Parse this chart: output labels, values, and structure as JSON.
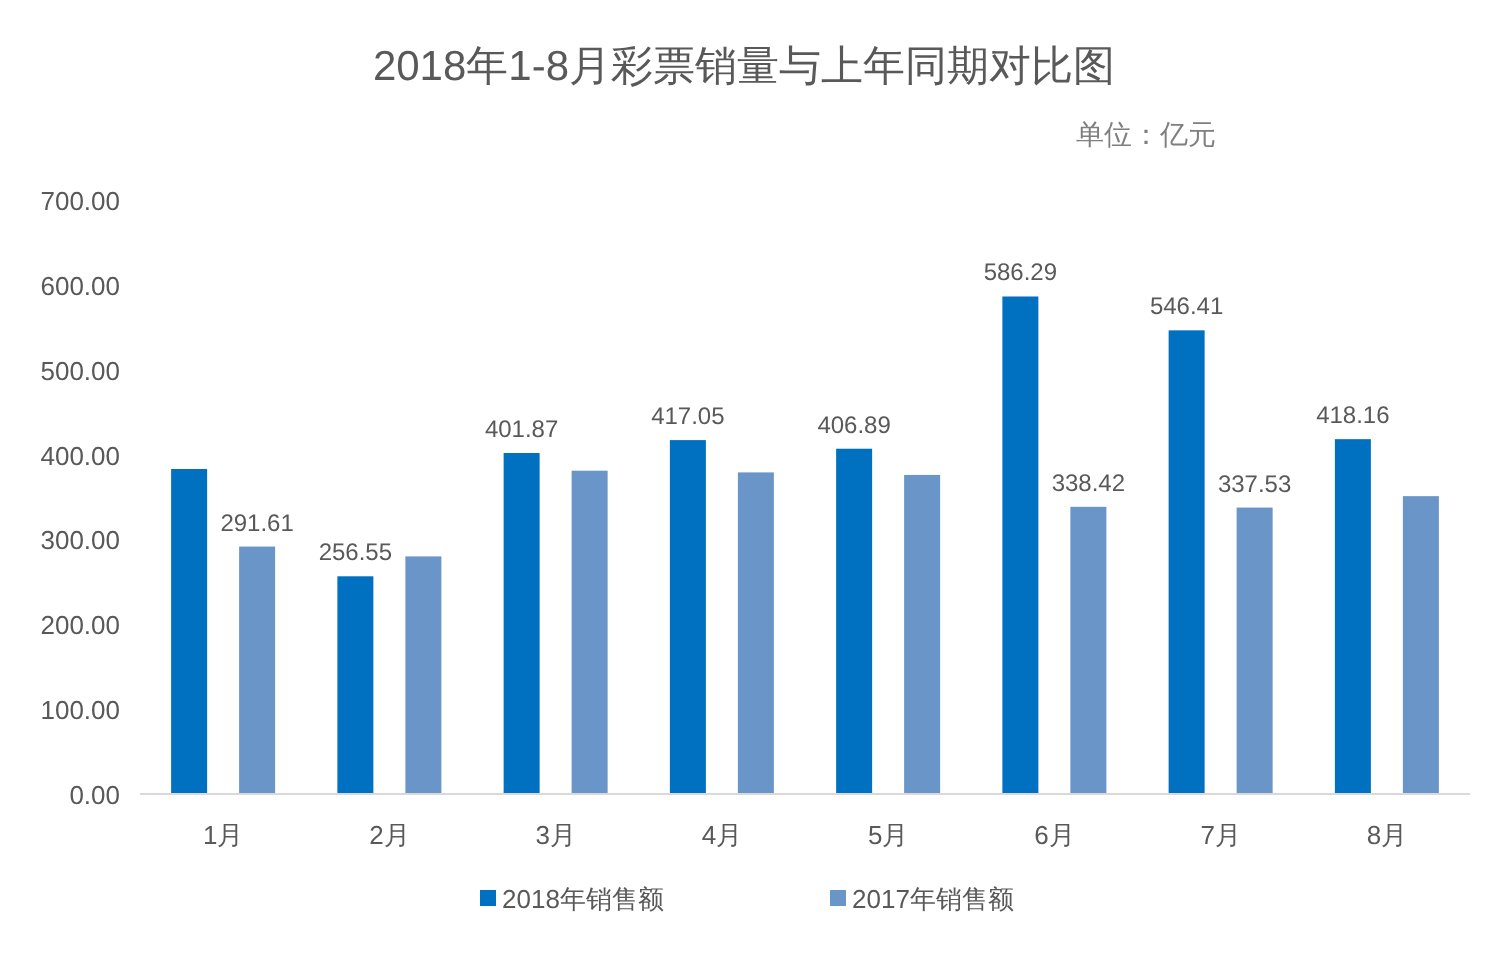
{
  "chart_data": {
    "type": "bar",
    "title": "2018年1-8月彩票销量与上年同期对比图",
    "annotations": [
      "单位：亿元"
    ],
    "categories": [
      "1月",
      "2月",
      "3月",
      "4月",
      "5月",
      "6月",
      "7月",
      "8月"
    ],
    "series": [
      {
        "name": "2018年销售额",
        "color": "#0070c0",
        "values": [
          383,
          256.55,
          401.87,
          417.05,
          406.89,
          586.29,
          546.41,
          418.16
        ],
        "value_labels": [
          null,
          "256.55",
          "401.87",
          "417.05",
          "406.89",
          "586.29",
          "546.41",
          "418.16"
        ]
      },
      {
        "name": "2017年销售额",
        "color": "#6a95c8",
        "values": [
          291.61,
          280,
          381,
          379,
          376,
          338.42,
          337.53,
          351
        ],
        "value_labels": [
          "291.61",
          null,
          null,
          null,
          null,
          "338.42",
          "337.53",
          null
        ]
      }
    ],
    "ylim": [
      0,
      700
    ],
    "yticks": [
      {
        "value": 0,
        "label": "0.00"
      },
      {
        "value": 100,
        "label": "100.00"
      },
      {
        "value": 200,
        "label": "200.00"
      },
      {
        "value": 300,
        "label": "300.00"
      },
      {
        "value": 400,
        "label": "400.00"
      },
      {
        "value": 500,
        "label": "500.00"
      },
      {
        "value": 600,
        "label": "600.00"
      },
      {
        "value": 700,
        "label": "700.00"
      }
    ],
    "grid": false,
    "legend": "bottom"
  }
}
